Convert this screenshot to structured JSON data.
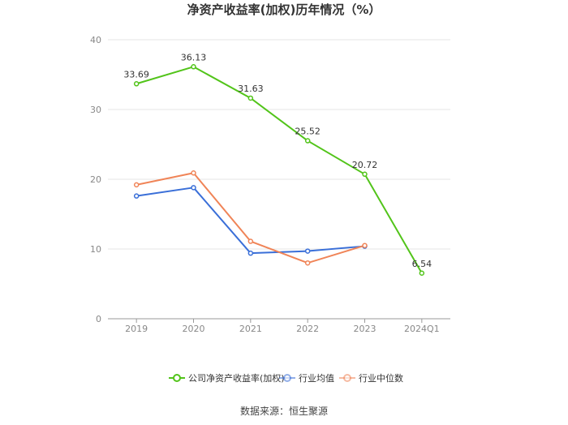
{
  "chart_data": {
    "type": "line",
    "title": "净资产收益率(加权)历年情况（%）",
    "categories": [
      "2019",
      "2020",
      "2021",
      "2022",
      "2023",
      "2024Q1"
    ],
    "ylim": [
      0,
      40
    ],
    "yticks": [
      0,
      10,
      20,
      30,
      40
    ],
    "grid": true,
    "legend_position": "bottom",
    "series": [
      {
        "name": "公司净资产收益率(加权)",
        "color": "#52c41a",
        "values": [
          33.69,
          36.13,
          31.63,
          25.52,
          20.72,
          6.54
        ],
        "labels": [
          "33.69",
          "36.13",
          "31.63",
          "25.52",
          "20.72",
          "6.54"
        ]
      },
      {
        "name": "行业均值",
        "color": "#3a6fd8",
        "values": [
          17.6,
          18.8,
          9.4,
          9.7,
          10.4,
          null
        ]
      },
      {
        "name": "行业中位数",
        "color": "#f08457",
        "values": [
          19.2,
          20.9,
          11.1,
          8.0,
          10.5,
          null
        ]
      }
    ],
    "source": "数据来源：恒生聚源"
  }
}
